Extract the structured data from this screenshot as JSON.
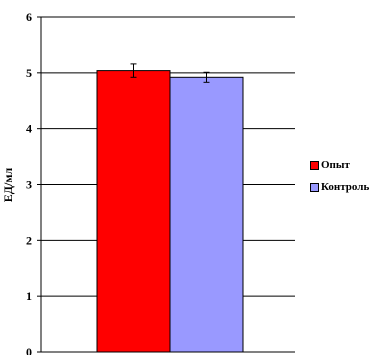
{
  "chart_data": {
    "type": "bar",
    "categories": [
      ""
    ],
    "series": [
      {
        "name": "Опыт",
        "values": [
          5.04
        ],
        "error": [
          0.12
        ],
        "color": "#ff0000"
      },
      {
        "name": "Контроль",
        "values": [
          4.92
        ],
        "error": [
          0.09
        ],
        "color": "#9999ff"
      }
    ],
    "title": "",
    "xlabel": "",
    "ylabel": "ЕД/мл",
    "ylim": [
      0,
      6
    ],
    "yticks": [
      "0",
      "1",
      "2",
      "3",
      "4",
      "5",
      "6"
    ],
    "grid": true,
    "legend": "right"
  }
}
